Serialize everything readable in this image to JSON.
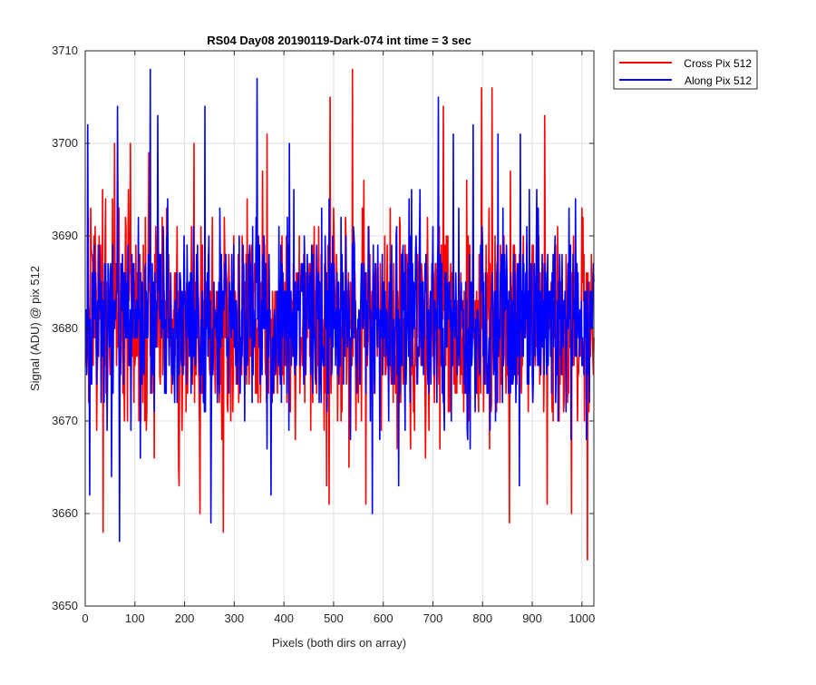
{
  "chart_data": {
    "type": "line",
    "title": "RS04 Day08 20190119-Dark-074 int time = 3 sec",
    "xlabel": "Pixels (both dirs on array)",
    "ylabel": "Signal (ADU) @ pix 512",
    "xlim": [
      0,
      1024
    ],
    "ylim": [
      3650,
      3710
    ],
    "xticks": [
      0,
      100,
      200,
      300,
      400,
      500,
      600,
      700,
      800,
      900,
      1000
    ],
    "yticks": [
      3650,
      3660,
      3670,
      3680,
      3690,
      3700,
      3710
    ],
    "grid": true,
    "legend_position": "outside-top-right",
    "series": [
      {
        "name": "Cross Pix 512",
        "color": "#ff0000",
        "noise": {
          "mean": 3681,
          "sigma": 5.6,
          "seed": 7
        },
        "peaks": [
          {
            "x": 58,
            "y": 3700
          },
          {
            "x": 90,
            "y": 3700
          },
          {
            "x": 127,
            "y": 3699
          },
          {
            "x": 218,
            "y": 3700
          },
          {
            "x": 365,
            "y": 3701
          },
          {
            "x": 492,
            "y": 3705
          },
          {
            "x": 537,
            "y": 3708
          },
          {
            "x": 720,
            "y": 3704
          },
          {
            "x": 797,
            "y": 3706
          },
          {
            "x": 818,
            "y": 3706
          },
          {
            "x": 924,
            "y": 3703
          }
        ],
        "troughs": [
          {
            "x": 35,
            "y": 3658
          },
          {
            "x": 188,
            "y": 3663
          },
          {
            "x": 230,
            "y": 3660
          },
          {
            "x": 277,
            "y": 3658
          },
          {
            "x": 490,
            "y": 3661
          },
          {
            "x": 564,
            "y": 3661
          },
          {
            "x": 853,
            "y": 3659
          },
          {
            "x": 929,
            "y": 3661
          },
          {
            "x": 978,
            "y": 3660
          },
          {
            "x": 1010,
            "y": 3655
          }
        ]
      },
      {
        "name": "Along Pix 512",
        "color": "#0000ff",
        "noise": {
          "mean": 3681,
          "sigma": 5.3,
          "seed": 19
        },
        "peaks": [
          {
            "x": 4,
            "y": 3702
          },
          {
            "x": 64,
            "y": 3704
          },
          {
            "x": 130,
            "y": 3708
          },
          {
            "x": 145,
            "y": 3703
          },
          {
            "x": 240,
            "y": 3704
          },
          {
            "x": 345,
            "y": 3707
          },
          {
            "x": 410,
            "y": 3700
          },
          {
            "x": 710,
            "y": 3705
          },
          {
            "x": 740,
            "y": 3701
          },
          {
            "x": 780,
            "y": 3702
          },
          {
            "x": 830,
            "y": 3701
          },
          {
            "x": 875,
            "y": 3701
          }
        ],
        "troughs": [
          {
            "x": 8,
            "y": 3662
          },
          {
            "x": 52,
            "y": 3664
          },
          {
            "x": 68,
            "y": 3657
          },
          {
            "x": 252,
            "y": 3659
          },
          {
            "x": 373,
            "y": 3662
          },
          {
            "x": 577,
            "y": 3660
          },
          {
            "x": 630,
            "y": 3663
          },
          {
            "x": 873,
            "y": 3663
          }
        ]
      }
    ]
  }
}
